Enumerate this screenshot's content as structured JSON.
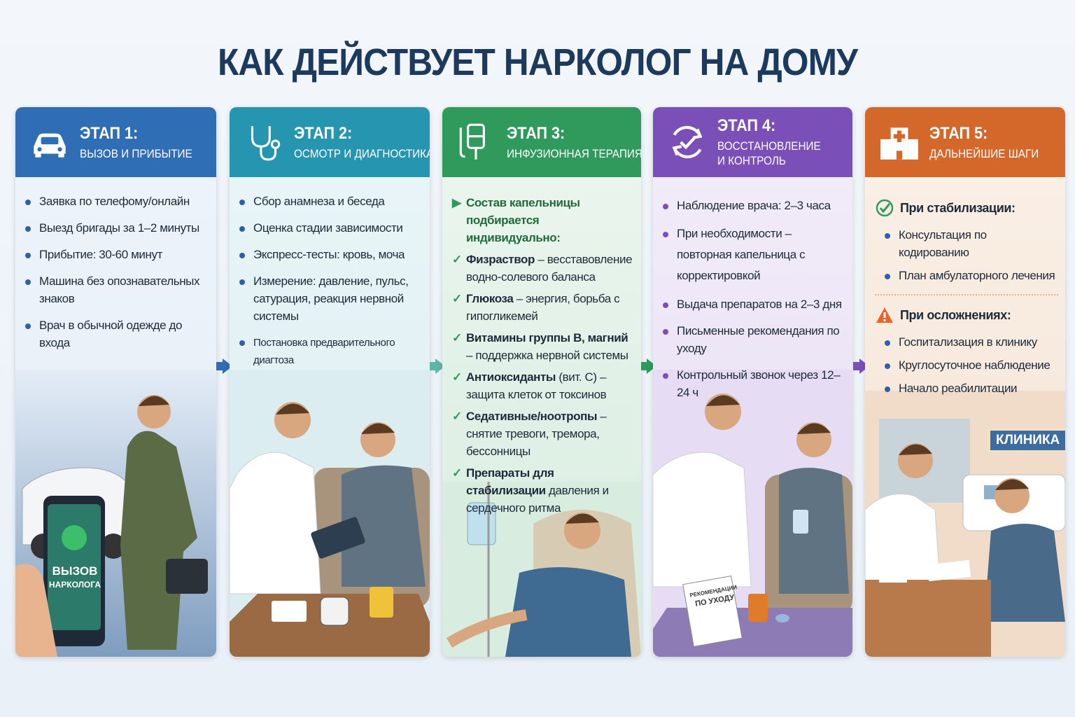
{
  "title": "КАК ДЕЙСТВУЕТ НАРКОЛОГ НА ДОМУ",
  "colors": {
    "stage1": "#2f6db5",
    "stage2": "#2595b0",
    "stage3": "#2f9a5c",
    "stage4": "#7a4fb7",
    "stage5": "#d4682a",
    "title": "#1c3a5e"
  },
  "stages": [
    {
      "number": "ЭТАП 1:",
      "title": [
        "ВЫЗОВ И ПРИБЫТИЕ"
      ],
      "icon": "car-icon",
      "items": [
        "Заявка по телефому/онлайн",
        "Выезд бригады за 1–2 минуты",
        "Прибытие: 30-60 минут",
        "Машина без опознавательных знаков",
        "Врач в обычной одежде до входа"
      ],
      "scene_text": [
        "ВЫЗОВ",
        "НАРКОЛОГА"
      ]
    },
    {
      "number": "ЭТАП 2:",
      "title": [
        "ОСМОТР И ДИАГНОСТИКА"
      ],
      "icon": "stethoscope-icon",
      "items": [
        "Сбор анамнеза и беседа",
        "Оценка стадии зависимости",
        "Экспресс-тесты: кровь, моча",
        "Измерение: давление, пульс, сатурация, реакция нервной системы",
        "Постановка предварительного диагтоза"
      ]
    },
    {
      "number": "ЭТАП 3:",
      "title": [
        "ИНФУЗИОННАЯ ТЕРАПИЯ"
      ],
      "icon": "iv-drip-icon",
      "intro": "Состав капельницы подбирается индивидуально:",
      "items": [
        {
          "bold": "Физраствор",
          "rest": " – весставовление водно-солевого баланса"
        },
        {
          "bold": "Глюкоза",
          "rest": " – энергия, борьба с гипогликемей"
        },
        {
          "bold": "Витамины группы B, магний",
          "rest": " – поддержка нервной системы"
        },
        {
          "bold": "Антиоксиданты",
          "rest": " (вит. С) – защита клеток от токсинов"
        },
        {
          "bold": "Седативные/ноотропы",
          "rest": " – снятие тревоги, тремора, бессонницы"
        },
        {
          "bold": "Препараты для стабилизации",
          "rest": " давления и сердечного ритма"
        }
      ]
    },
    {
      "number": "ЭТАП 4:",
      "title": [
        "ВОССТАНОВЛЕНИЕ",
        "И КОНТРОЛЬ"
      ],
      "icon": "refresh-check-icon",
      "items": [
        "Наблюдение врача: 2–3 часа",
        "При необходимости – повторная капельница с корректировкой",
        "Выдача препаратов на 2–3 дня",
        "Письменные рекомендания по уходу",
        "Контрольный звонок через 12–24 ч"
      ],
      "scene_text": [
        "РЕКОМЕНДАЦИИ",
        "ПО УХОДУ"
      ]
    },
    {
      "number": "ЭТАП 5:",
      "title": [
        "ДАЛЬНЕЙШИЕ ШАГИ"
      ],
      "icon": "hospital-icon",
      "groups": [
        {
          "heading": "При стабилизации:",
          "icon": "check-circle-icon",
          "items": [
            "Консультация по кодированию",
            "План амбулаторного лечения"
          ]
        },
        {
          "heading": "При осложнениях:",
          "icon": "warning-icon",
          "items": [
            "Госпитализация в клинику",
            "Круглосуточное наблюдение",
            "Начало реабилитации"
          ]
        }
      ],
      "scene_text": [
        "КЛИНИКА"
      ]
    }
  ]
}
